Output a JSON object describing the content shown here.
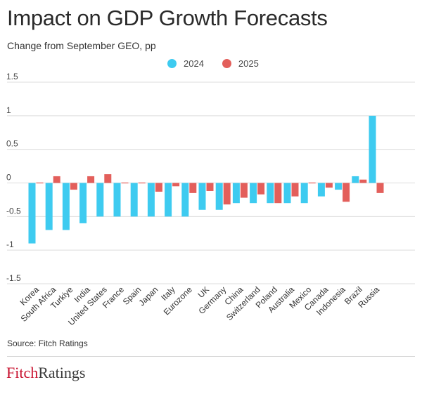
{
  "header": {
    "title": "Impact on GDP Growth Forecasts",
    "subtitle": "Change from September GEO, pp"
  },
  "footer": {
    "source": "Source: Fitch Ratings",
    "logo_part1": "Fitch",
    "logo_part2": "Ratings"
  },
  "colors": {
    "series_2024": "#3ecbf0",
    "series_2025": "#e35f5b",
    "logo_red": "#c8102e"
  },
  "chart_data": {
    "type": "bar",
    "title": "Impact on GDP Growth Forecasts",
    "subtitle": "Change from September GEO, pp",
    "xlabel": "",
    "ylabel": "",
    "ylim": [
      -1.5,
      1.5
    ],
    "yticks": [
      1.5,
      1,
      0.5,
      0,
      -0.5,
      -1,
      -1.5
    ],
    "ytick_labels": [
      "1.5",
      "1",
      "0.5",
      "0",
      "-0.5",
      "-1",
      "-1.5"
    ],
    "grid": true,
    "legend_position": "top-center",
    "categories": [
      "Korea",
      "South Africa",
      "Turkiye",
      "India",
      "United States",
      "France",
      "Spain",
      "Japan",
      "Italy",
      "Eurozone",
      "UK",
      "Germany",
      "China",
      "Switzerland",
      "Poland",
      "Australia",
      "Mexico",
      "Canada",
      "Indonesia",
      "Brazil",
      "Russia"
    ],
    "series": [
      {
        "name": "2024",
        "color": "#3ecbf0",
        "values": [
          -0.9,
          -0.7,
          -0.7,
          -0.6,
          -0.5,
          -0.5,
          -0.5,
          -0.5,
          -0.5,
          -0.5,
          -0.4,
          -0.4,
          -0.3,
          -0.3,
          -0.3,
          -0.3,
          -0.3,
          -0.2,
          -0.1,
          0.1,
          1.0
        ]
      },
      {
        "name": "2025",
        "color": "#e35f5b",
        "values": [
          0.0,
          0.1,
          -0.1,
          0.1,
          0.13,
          0.0,
          0.0,
          -0.13,
          -0.05,
          -0.15,
          -0.12,
          -0.32,
          -0.22,
          -0.17,
          -0.3,
          -0.2,
          0.0,
          -0.07,
          -0.28,
          0.05,
          -0.15
        ]
      }
    ]
  }
}
